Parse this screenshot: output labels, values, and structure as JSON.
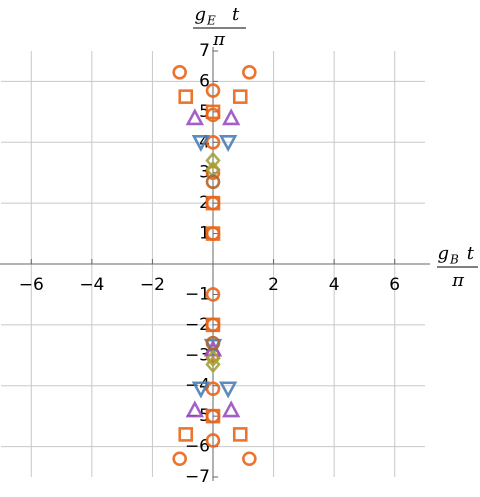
{
  "chart_data": {
    "type": "scatter",
    "xlabel": {
      "symbol": "g",
      "subscript": "B",
      "variable": "t",
      "denominator": "π"
    },
    "ylabel": {
      "symbol": "g",
      "subscript": "E",
      "variable": "t",
      "denominator": "π"
    },
    "xlim": [
      -7,
      7
    ],
    "ylim": [
      -7,
      7
    ],
    "xticks": [
      {
        "value": -6,
        "label": "−6"
      },
      {
        "value": -4,
        "label": "−4"
      },
      {
        "value": -2,
        "label": "−2"
      },
      2,
      4,
      6
    ],
    "yticks": [
      {
        "value": -7,
        "label": "−7"
      },
      {
        "value": -6,
        "label": "−6"
      },
      {
        "value": -5,
        "label": "−5"
      },
      {
        "value": -4,
        "label": "−4"
      },
      {
        "value": -3,
        "label": "−3"
      },
      {
        "value": -2,
        "label": "−2"
      },
      {
        "value": -1,
        "label": "−1"
      },
      1,
      2,
      3,
      4,
      5,
      6,
      7
    ],
    "xgrid": [
      -6,
      -4,
      -2,
      2,
      4,
      6
    ],
    "ygrid": [
      -6,
      -4,
      -2,
      2,
      4,
      6
    ],
    "series": [
      {
        "marker": "circle",
        "color": "#e8651a",
        "x": [
          -1.1,
          1.2,
          0,
          0,
          0,
          0,
          0,
          0,
          -1.1,
          1.2,
          0,
          0,
          0,
          0,
          0,
          0
        ],
        "y": [
          6.3,
          6.3,
          5.7,
          4.9,
          4,
          3,
          2,
          1,
          -6.4,
          -6.4,
          -5.8,
          -5,
          -4.1,
          -3,
          -2,
          -1
        ]
      },
      {
        "marker": "square",
        "color": "#e8651a",
        "x": [
          -0.9,
          0.9,
          0,
          0,
          0,
          -0.9,
          0.9,
          0,
          0
        ],
        "y": [
          5.5,
          5.5,
          5,
          2,
          1,
          -5.6,
          -5.6,
          -5,
          -2
        ]
      },
      {
        "marker": "triangle-up",
        "color": "#9b4fc2",
        "x": [
          -0.6,
          0.6,
          -0.6,
          0.6,
          0
        ],
        "y": [
          4.8,
          4.8,
          -4.8,
          -4.8,
          -2.8
        ]
      },
      {
        "marker": "triangle-down",
        "color": "#4a7fb5",
        "x": [
          -0.4,
          0.5,
          -0.4,
          0.5,
          0
        ],
        "y": [
          4,
          4,
          -4.1,
          -4.1,
          -2.7
        ]
      },
      {
        "marker": "diamond",
        "color": "#a5a33a",
        "x": [
          0,
          0,
          0,
          0
        ],
        "y": [
          3.4,
          3.1,
          -3.3,
          -3.1
        ]
      },
      {
        "marker": "circle",
        "color": "#b0642a",
        "x": [
          0,
          0
        ],
        "y": [
          2.7,
          -2.6
        ]
      }
    ]
  }
}
